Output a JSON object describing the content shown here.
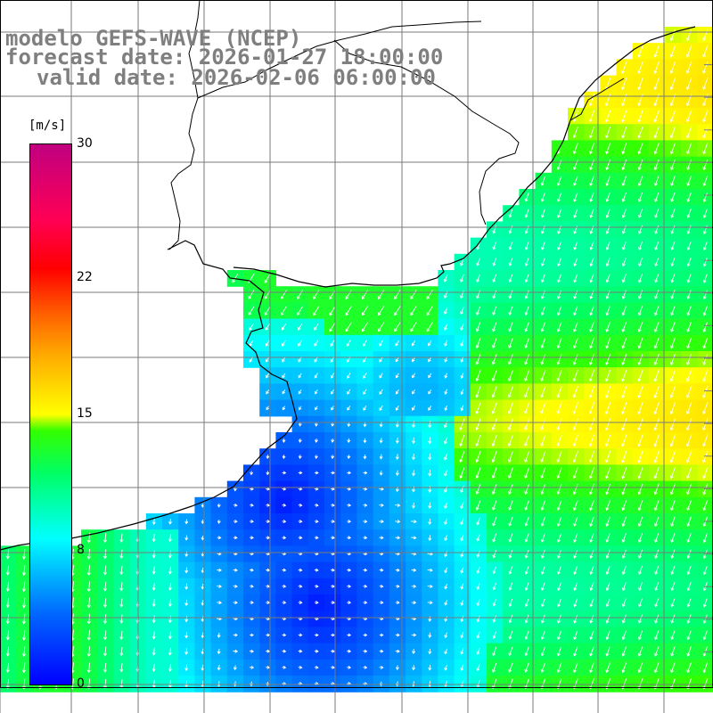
{
  "title": {
    "line1": "modelo GEFS-WAVE (NCEP)",
    "line2": "forecast date: 2026-01-27 18:00:00",
    "line3": "valid date: 2026-02-06 06:00:00"
  },
  "colorbar": {
    "unit": "[m/s]",
    "ticks": [
      "30",
      "22",
      "15",
      "8",
      "0"
    ],
    "min": 0,
    "max": 30,
    "colors": [
      "#0000ff",
      "#00c8ff",
      "#00ffff",
      "#33ff00",
      "#ffff00",
      "#ff6600",
      "#ff0000",
      "#c00080"
    ]
  },
  "map": {
    "variable": "wind speed and direction",
    "land_color": "#ffffff",
    "grid_color": "#808080",
    "coast_color": "#000000",
    "arrow_color": "#ffffff"
  }
}
